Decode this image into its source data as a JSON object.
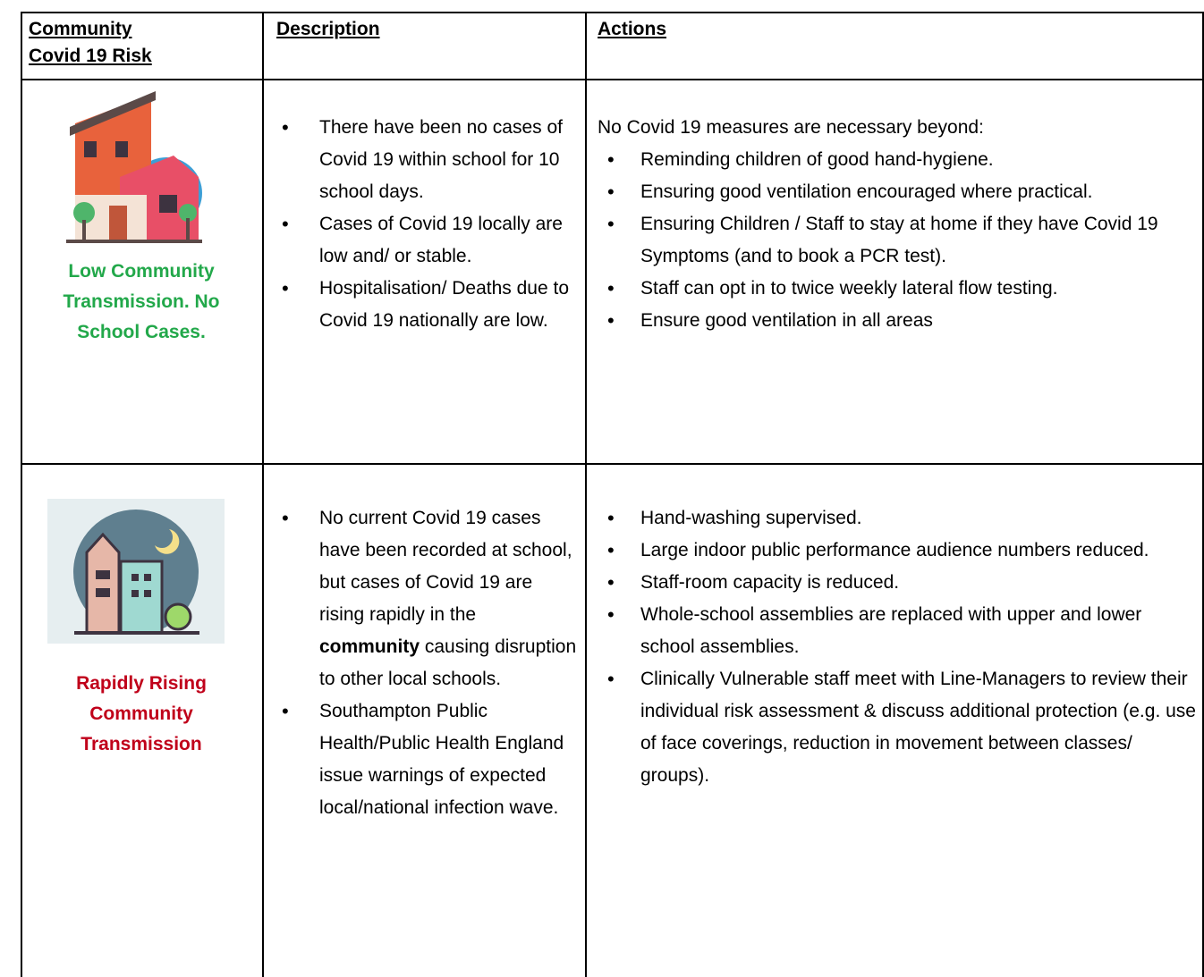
{
  "table": {
    "header": [
      "Community Covid 19 Risk",
      "Description",
      "Actions"
    ],
    "rows": [
      {
        "risk": "Low Community Transmission. No School Cases.",
        "risk_color": "#22a84a",
        "description": [
          [
            "There have been no cases of Covid 19 within school for 10 school days."
          ],
          [
            "Cases of Covid 19 locally are low and/ or stable."
          ],
          [
            "Hospitalisation/ Deaths due to Covid 19 nationally are low."
          ]
        ],
        "actions_intro": "No Covid 19 measures are necessary beyond:",
        "actions": [
          "Reminding children of good hand-hygiene.",
          "Ensuring good ventilation encouraged where practical.",
          "Ensuring Children / Staff to stay at home if they have Covid 19 Symptoms (and to book a PCR test).",
          "Staff can opt in to twice weekly lateral flow testing.",
          "Ensure good ventilation in all areas"
        ]
      },
      {
        "risk": "Rapidly Rising Community Transmission",
        "risk_color": "#c0001a",
        "description": [
          [
            "No current Covid 19 cases have been recorded at school, but cases of Covid 19 are rising rapidly in the ",
            {
              "text": "community",
              "bold": true
            },
            " causing disruption to other local schools."
          ],
          [
            "Southampton Public Health/Public Health England issue warnings of expected local/national infection wave."
          ]
        ],
        "actions": [
          "Hand-washing supervised.",
          "Large indoor public performance audience numbers reduced.",
          "Staff-room capacity is reduced.",
          "Whole-school assemblies are replaced with upper and lower school assemblies.",
          "Clinically Vulnerable staff meet with Line-Managers to review their individual risk assessment & discuss additional protection (e.g. use of face coverings, reduction in movement between classes/ groups)."
        ]
      }
    ]
  }
}
